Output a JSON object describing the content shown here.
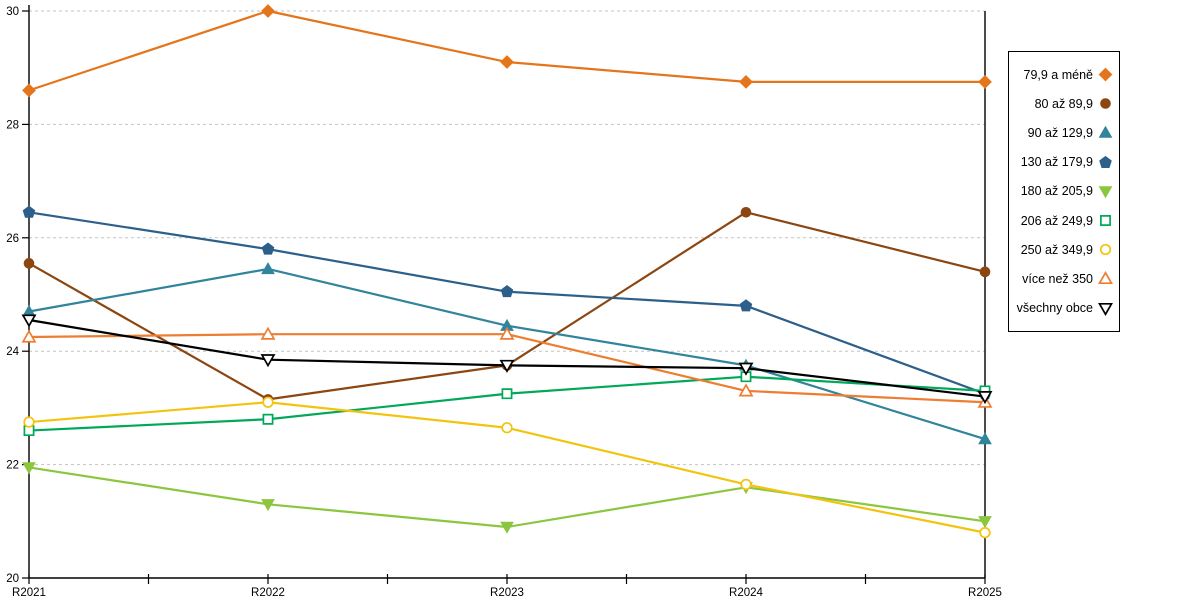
{
  "chart_data": {
    "type": "line",
    "title": "",
    "legend_position": "right",
    "grid": {
      "style": "dashed",
      "color": "#C3C3C3",
      "gridlines_at": [
        22,
        24,
        26,
        28,
        30
      ]
    },
    "axis_color": "#000000",
    "x": {
      "categories": [
        "R2021",
        "R2022",
        "R2023",
        "R2024",
        "R2025"
      ]
    },
    "y": {
      "min": 20,
      "max": 30,
      "tick_step": 2,
      "ticks": [
        "20",
        "22",
        "24",
        "26",
        "28",
        "30"
      ]
    },
    "series": [
      {
        "name": "79,9 a méně",
        "color": "#E5751A",
        "marker": "diamond",
        "fill": "filled",
        "values": [
          28.6,
          30.0,
          29.1,
          28.75,
          28.75
        ]
      },
      {
        "name": "80 až 89,9",
        "color": "#8C4611",
        "marker": "circle",
        "fill": "filled",
        "values": [
          25.55,
          23.15,
          23.75,
          26.45,
          25.4
        ]
      },
      {
        "name": "90 až 129,9",
        "color": "#31849B",
        "marker": "triangle-up",
        "fill": "filled",
        "values": [
          24.7,
          25.45,
          24.45,
          23.75,
          22.45
        ]
      },
      {
        "name": "130 až 179,9",
        "color": "#2C5F8A",
        "marker": "pentagon",
        "fill": "filled",
        "values": [
          26.45,
          25.8,
          25.05,
          24.8,
          23.25
        ]
      },
      {
        "name": "180 až 205,9",
        "color": "#8CC63E",
        "marker": "triangle-down",
        "fill": "filled",
        "values": [
          21.95,
          21.3,
          20.9,
          21.6,
          21.0
        ]
      },
      {
        "name": "206 až 249,9",
        "color": "#00A859",
        "marker": "square",
        "fill": "open",
        "values": [
          22.6,
          22.8,
          23.25,
          23.55,
          23.3
        ]
      },
      {
        "name": "250 až 349,9",
        "color": "#F2C40F",
        "marker": "circle",
        "fill": "open",
        "values": [
          22.75,
          23.1,
          22.65,
          21.65,
          20.8
        ]
      },
      {
        "name": "více než 350",
        "color": "#ED7D31",
        "marker": "triangle-up",
        "fill": "open",
        "values": [
          24.25,
          24.3,
          24.3,
          23.3,
          23.1
        ]
      },
      {
        "name": "všechny obce",
        "color": "#000000",
        "marker": "triangle-down",
        "fill": "open",
        "values": [
          24.55,
          23.85,
          23.75,
          23.7,
          23.2
        ]
      }
    ]
  }
}
